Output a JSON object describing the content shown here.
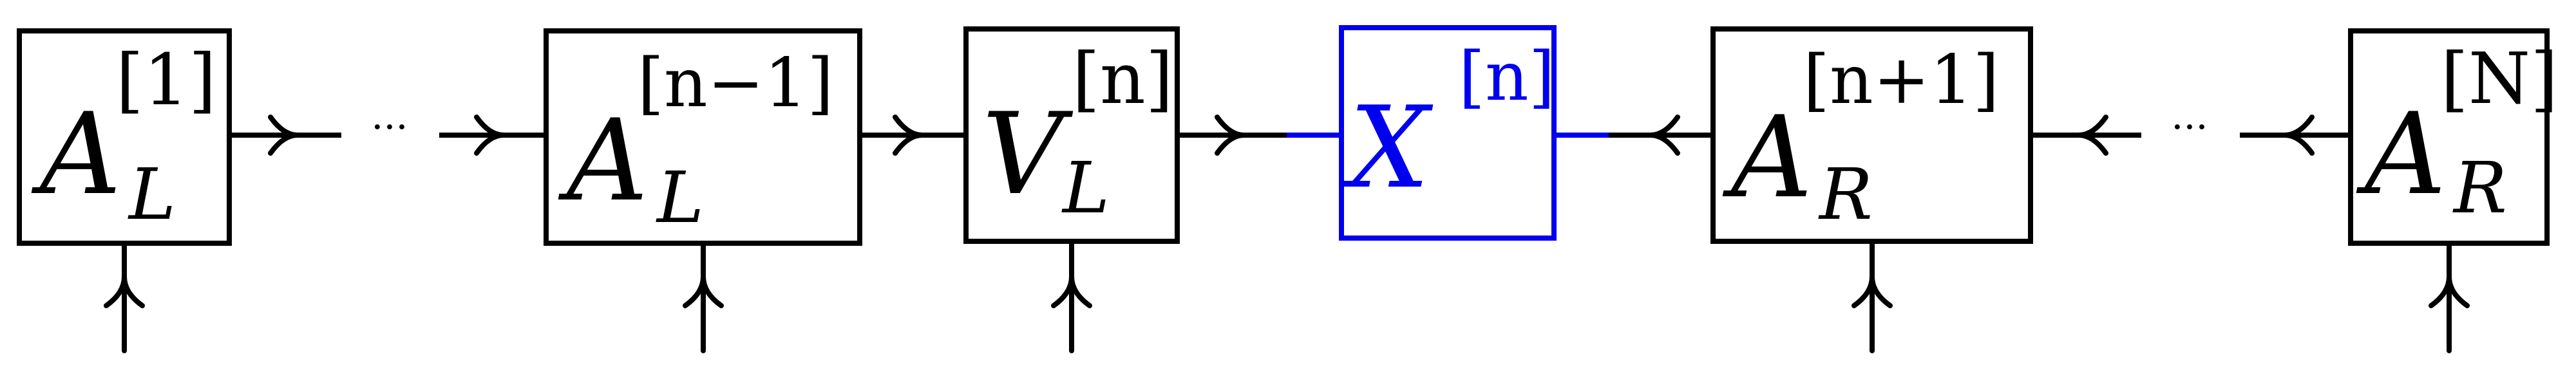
{
  "colors": {
    "ink": "#000000",
    "accent": "#0000ee"
  },
  "tensors": [
    {
      "id": "a-l-1",
      "base": "A",
      "sup": "[1]",
      "sub": "L",
      "color": "ink"
    },
    {
      "id": "a-l-n-1",
      "base": "A",
      "sup": "[n−1]",
      "sub": "L",
      "color": "ink"
    },
    {
      "id": "v-l-n",
      "base": "V",
      "sup": "[n]",
      "sub": "L",
      "color": "ink"
    },
    {
      "id": "x-n",
      "base": "X",
      "sup": "[n]",
      "sub": "",
      "color": "accent"
    },
    {
      "id": "a-r-n+1",
      "base": "A",
      "sup": "[n+1]",
      "sub": "R",
      "color": "ink"
    },
    {
      "id": "a-r-N",
      "base": "A",
      "sup": "[N]",
      "sub": "R",
      "color": "ink"
    }
  ],
  "ellipses": [
    "···",
    "···"
  ],
  "physical_legs": [
    "a-l-1",
    "a-l-n-1",
    "v-l-n",
    "a-r-n+1",
    "a-r-N"
  ]
}
